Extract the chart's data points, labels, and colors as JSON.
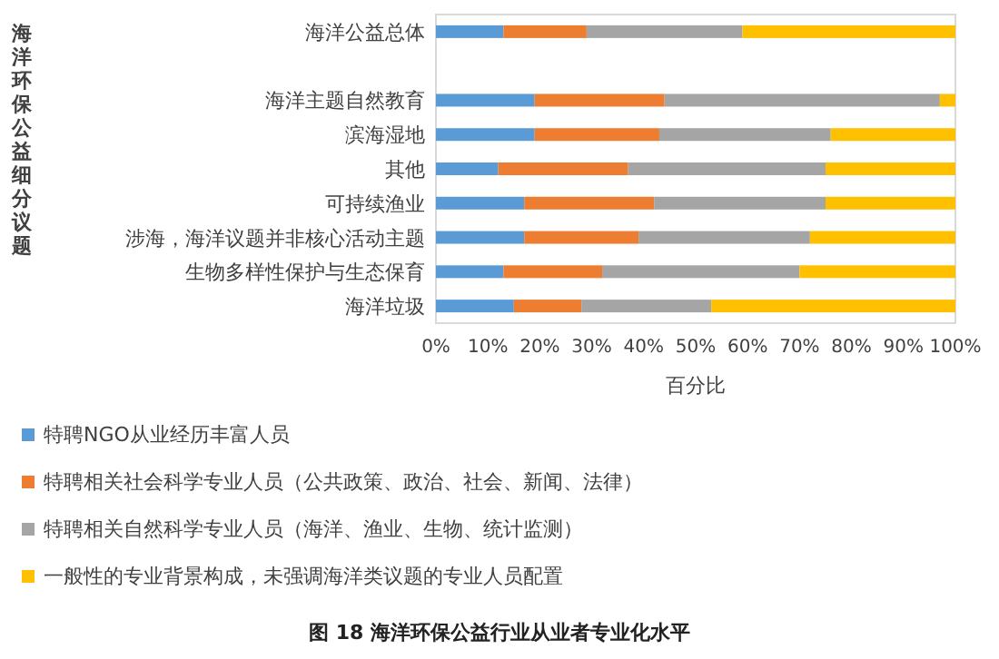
{
  "chart_data": {
    "type": "bar",
    "orientation": "horizontal",
    "stacked": true,
    "categories": [
      "海洋公益总体",
      null,
      "海洋主题自然教育",
      "滨海湿地",
      "其他",
      "可持续渔业",
      "涉海，海洋议题并非核心活动主题",
      "生物多样性保护与生态保育",
      "海洋垃圾"
    ],
    "series": [
      {
        "name": "特聘NGO从业经历丰富人员",
        "color": "#5b9bd5",
        "values": [
          13,
          null,
          19,
          19,
          12,
          17,
          17,
          13,
          15
        ]
      },
      {
        "name": "特聘相关社会科学专业人员（公共政策、政治、社会、新闻、法律）",
        "color": "#ed7d31",
        "values": [
          16,
          null,
          25,
          24,
          25,
          25,
          22,
          19,
          13
        ]
      },
      {
        "name": "特聘相关自然科学专业人员（海洋、渔业、生物、统计监测）",
        "color": "#a5a5a5",
        "values": [
          30,
          null,
          53,
          33,
          38,
          33,
          33,
          38,
          25
        ]
      },
      {
        "name": "一般性的专业背景构成，未强调海洋类议题的专业人员配置",
        "color": "#ffc000",
        "values": [
          41,
          null,
          3,
          24,
          25,
          25,
          28,
          30,
          47
        ]
      }
    ],
    "xlim": [
      0,
      100
    ],
    "xticks": [
      {
        "value": 0,
        "label": "0%"
      },
      {
        "value": 10,
        "label": "10%"
      },
      {
        "value": 20,
        "label": "20%"
      },
      {
        "value": 30,
        "label": "30%"
      },
      {
        "value": 40,
        "label": "40%"
      },
      {
        "value": 50,
        "label": "50%"
      },
      {
        "value": 60,
        "label": "60%"
      },
      {
        "value": 70,
        "label": "70%"
      },
      {
        "value": 80,
        "label": "80%"
      },
      {
        "value": 90,
        "label": "90%"
      },
      {
        "value": 100,
        "label": "100%"
      }
    ],
    "xlabel": "百分比",
    "ylabel": "海洋环保公益细分议题",
    "legend": "bottom",
    "grid": false,
    "annotations": [
      "图 18   海洋环保公益行业从业者专业化水平"
    ]
  }
}
